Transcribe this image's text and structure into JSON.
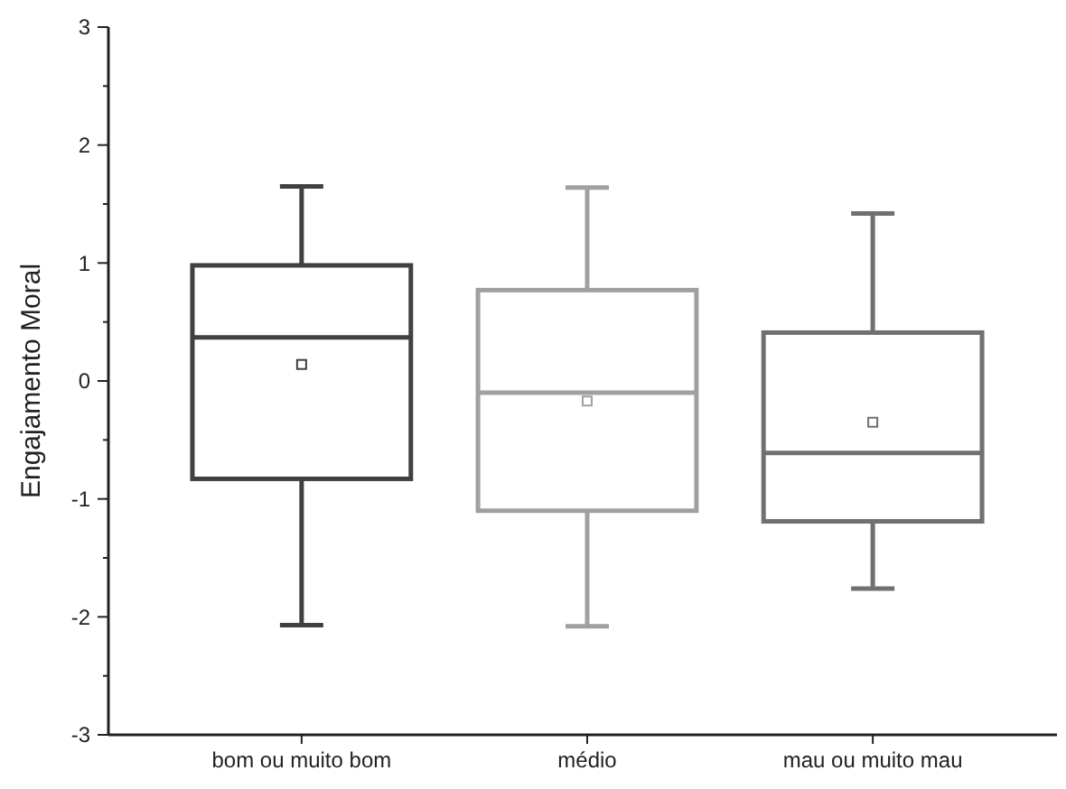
{
  "chart_data": {
    "type": "box",
    "ylabel": "Engajamento Moral",
    "categories": [
      "bom ou muito bom",
      "médio",
      "mau ou muito mau"
    ],
    "boxes": [
      {
        "low": -2.07,
        "q1": -0.83,
        "median": 0.37,
        "q3": 0.98,
        "high": 1.65,
        "mean": 0.14
      },
      {
        "low": -2.08,
        "q1": -1.1,
        "median": -0.1,
        "q3": 0.77,
        "high": 1.64,
        "mean": -0.17
      },
      {
        "low": -1.76,
        "q1": -1.19,
        "median": -0.61,
        "q3": 0.41,
        "high": 1.42,
        "mean": -0.35
      }
    ],
    "colors": [
      "#404040",
      "#a0a0a0",
      "#707070"
    ],
    "ylim": [
      -3,
      3
    ],
    "yticks": [
      -3,
      {
        "value": -2.5,
        "label": null
      },
      -2,
      {
        "value": -1.5,
        "label": null
      },
      -1,
      {
        "value": -0.5,
        "label": null
      },
      0,
      {
        "value": 0.5,
        "label": null
      },
      1,
      {
        "value": 1.5,
        "label": null
      },
      2,
      {
        "value": 2.5,
        "label": null
      },
      3
    ],
    "marker": "square"
  }
}
